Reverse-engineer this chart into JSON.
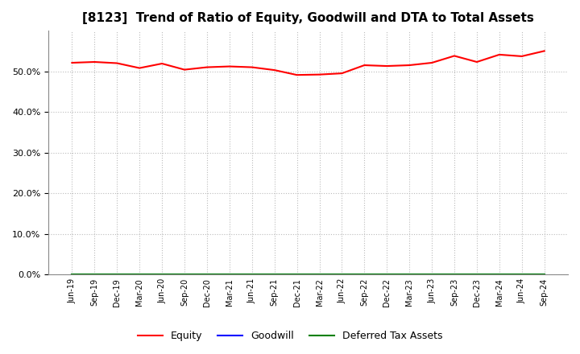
{
  "title": "[8123]  Trend of Ratio of Equity, Goodwill and DTA to Total Assets",
  "x_labels": [
    "Jun-19",
    "Sep-19",
    "Dec-19",
    "Mar-20",
    "Jun-20",
    "Sep-20",
    "Dec-20",
    "Mar-21",
    "Jun-21",
    "Sep-21",
    "Dec-21",
    "Mar-22",
    "Jun-22",
    "Sep-22",
    "Dec-22",
    "Mar-23",
    "Jun-23",
    "Sep-23",
    "Dec-23",
    "Mar-24",
    "Jun-24",
    "Sep-24"
  ],
  "equity": [
    52.1,
    52.3,
    52.0,
    50.8,
    51.9,
    50.4,
    51.0,
    51.2,
    51.0,
    50.3,
    49.1,
    49.2,
    49.5,
    51.5,
    51.3,
    51.5,
    52.1,
    53.8,
    52.3,
    54.1,
    53.7,
    55.0
  ],
  "goodwill": [
    0.0,
    0.0,
    0.0,
    0.0,
    0.0,
    0.0,
    0.0,
    0.0,
    0.0,
    0.0,
    0.0,
    0.0,
    0.0,
    0.0,
    0.0,
    0.0,
    0.0,
    0.0,
    0.0,
    0.0,
    0.0,
    0.0
  ],
  "dta": [
    0.0,
    0.0,
    0.0,
    0.0,
    0.0,
    0.0,
    0.0,
    0.0,
    0.0,
    0.0,
    0.0,
    0.0,
    0.0,
    0.0,
    0.0,
    0.0,
    0.0,
    0.0,
    0.0,
    0.0,
    0.0,
    0.0
  ],
  "equity_color": "#ff0000",
  "goodwill_color": "#0000ff",
  "dta_color": "#008000",
  "ylim": [
    0,
    60
  ],
  "yticks": [
    0,
    10,
    20,
    30,
    40,
    50
  ],
  "background_color": "#ffffff",
  "plot_bg_color": "#ffffff",
  "grid_color": "#bbbbbb",
  "title_fontsize": 11,
  "legend_labels": [
    "Equity",
    "Goodwill",
    "Deferred Tax Assets"
  ]
}
